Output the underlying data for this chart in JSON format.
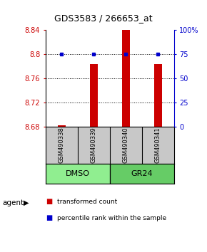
{
  "title": "GDS3583 / 266653_at",
  "samples": [
    "GSM490338",
    "GSM490339",
    "GSM490340",
    "GSM490341"
  ],
  "transformed_counts": [
    8.682,
    8.784,
    8.843,
    8.784
  ],
  "percentile_ranks": [
    75,
    75,
    75,
    75
  ],
  "ylim_left": [
    8.68,
    8.84
  ],
  "ylim_right": [
    0,
    100
  ],
  "yticks_left": [
    8.68,
    8.72,
    8.76,
    8.8,
    8.84
  ],
  "yticks_right": [
    0,
    25,
    50,
    75,
    100
  ],
  "ytick_labels_right": [
    "0",
    "25",
    "50",
    "75",
    "100%"
  ],
  "bar_color": "#CC0000",
  "dot_color": "#0000CC",
  "bar_width": 0.25,
  "background_color": "#ffffff",
  "legend_items": [
    {
      "color": "#CC0000",
      "label": "transformed count"
    },
    {
      "color": "#0000CC",
      "label": "percentile rank within the sample"
    }
  ],
  "dmso_color": "#90EE90",
  "gr24_color": "#66CC66",
  "sample_box_color": "#C8C8C8"
}
